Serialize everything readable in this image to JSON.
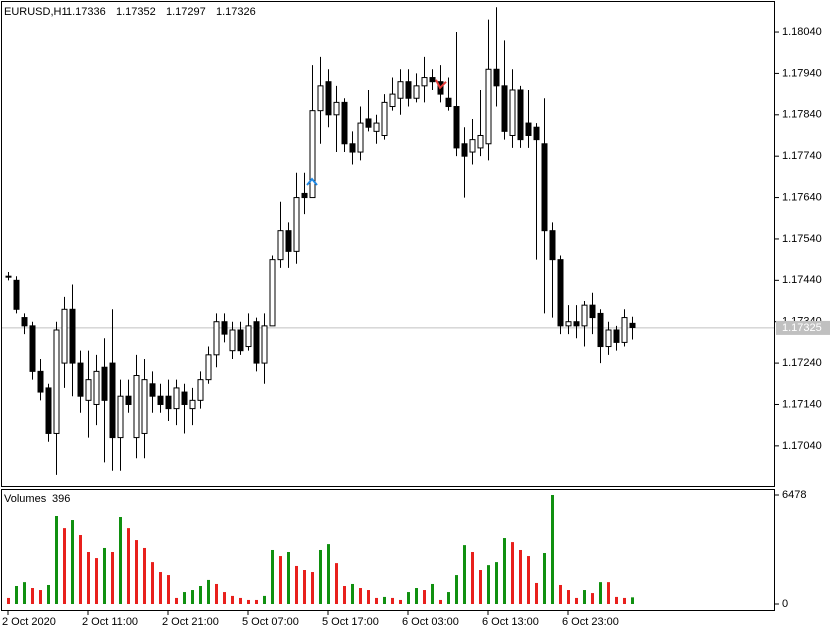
{
  "chart_data": [
    {
      "type": "candlestick",
      "symbol": "EURUSD,H1",
      "header_values": [
        1.17336,
        1.17352,
        1.17297,
        1.17326
      ],
      "categories": [
        "2 Oct 2020",
        null,
        null,
        null,
        null,
        null,
        null,
        null,
        null,
        null,
        "2 Oct 11:00",
        null,
        null,
        null,
        null,
        null,
        null,
        null,
        null,
        null,
        "2 Oct 21:00",
        null,
        null,
        null,
        null,
        null,
        null,
        null,
        null,
        null,
        "5 Oct 07:00",
        null,
        null,
        null,
        null,
        null,
        null,
        null,
        null,
        null,
        "5 Oct 17:00",
        null,
        null,
        null,
        null,
        null,
        null,
        null,
        null,
        null,
        "6 Oct 03:00",
        null,
        null,
        null,
        null,
        null,
        null,
        null,
        null,
        null,
        "6 Oct 13:00",
        null,
        null,
        null,
        null,
        null,
        null,
        null,
        null,
        null,
        "6 Oct 23:00",
        null,
        null,
        null,
        null,
        null,
        null,
        null,
        null
      ],
      "open": [
        1.1745,
        1.1744,
        1.1735,
        1.1733,
        1.1722,
        1.1718,
        1.1707,
        1.1724,
        1.1737,
        1.1724,
        1.1715,
        1.1714,
        1.1723,
        1.1724,
        1.1706,
        1.1716,
        1.1706,
        1.1707,
        1.1719,
        1.1716,
        1.1716,
        1.1713,
        1.1717,
        1.1713,
        1.1715,
        1.172,
        1.1726,
        1.1734,
        1.1727,
        1.1732,
        1.1728,
        1.1734,
        1.1724,
        1.1733,
        1.1749,
        1.1756,
        1.1751,
        1.1765,
        1.1764,
        1.1785,
        1.1792,
        1.1784,
        1.1787,
        1.1777,
        1.1775,
        1.1783,
        1.178,
        1.1779,
        1.1786,
        1.1788,
        1.1792,
        1.1788,
        1.1791,
        1.1793,
        1.1792,
        1.1788,
        1.1786,
        1.1777,
        1.1775,
        1.1776,
        1.1777,
        1.1795,
        1.1791,
        1.1779,
        1.179,
        1.1782,
        1.1781,
        1.1777,
        1.1756,
        1.1749,
        1.1733,
        1.1734,
        1.1733,
        1.1738,
        1.1736,
        1.1728,
        1.1732,
        1.1729,
        1.17336
      ],
      "high": [
        1.1746,
        1.1745,
        1.1736,
        1.1734,
        1.1725,
        1.1719,
        1.1734,
        1.174,
        1.1743,
        1.1727,
        1.1727,
        1.1726,
        1.173,
        1.1737,
        1.172,
        1.172,
        1.1726,
        1.1725,
        1.1722,
        1.1719,
        1.172,
        1.172,
        1.1719,
        1.1718,
        1.1722,
        1.1728,
        1.1736,
        1.1736,
        1.1734,
        1.1734,
        1.1736,
        1.1735,
        1.1736,
        1.175,
        1.1763,
        1.1758,
        1.177,
        1.177,
        1.1796,
        1.1798,
        1.1795,
        1.1791,
        1.1788,
        1.178,
        1.1786,
        1.179,
        1.1784,
        1.1789,
        1.1793,
        1.1795,
        1.1795,
        1.1794,
        1.1798,
        1.1795,
        1.1796,
        1.1793,
        1.1804,
        1.1781,
        1.1783,
        1.179,
        1.1807,
        1.181,
        1.1802,
        1.1795,
        1.1791,
        1.179,
        1.1782,
        1.1788,
        1.1758,
        1.175,
        1.1738,
        1.1738,
        1.1739,
        1.1741,
        1.1737,
        1.1734,
        1.1733,
        1.1737,
        1.17352
      ],
      "low": [
        1.1744,
        1.1736,
        1.1731,
        1.172,
        1.1715,
        1.1705,
        1.1697,
        1.1718,
        1.1716,
        1.1712,
        1.1706,
        1.1709,
        1.17,
        1.1698,
        1.1698,
        1.1712,
        1.1701,
        1.1701,
        1.1712,
        1.1712,
        1.171,
        1.1709,
        1.1707,
        1.1709,
        1.1713,
        1.1719,
        1.1723,
        1.1729,
        1.1725,
        1.1726,
        1.1727,
        1.1722,
        1.1719,
        1.1733,
        1.1747,
        1.1747,
        1.1748,
        1.176,
        1.1764,
        1.1777,
        1.1781,
        1.1775,
        1.1775,
        1.1772,
        1.1773,
        1.178,
        1.1777,
        1.1778,
        1.1785,
        1.1784,
        1.1786,
        1.1787,
        1.1787,
        1.179,
        1.1787,
        1.1785,
        1.1774,
        1.1764,
        1.1772,
        1.1774,
        1.1773,
        1.1786,
        1.1778,
        1.1776,
        1.1776,
        1.1776,
        1.1749,
        1.1736,
        1.1735,
        1.1731,
        1.1731,
        1.173,
        1.1728,
        1.1731,
        1.1724,
        1.1726,
        1.1727,
        1.1728,
        1.17297
      ],
      "close": [
        1.1745,
        1.1737,
        1.1733,
        1.1722,
        1.1717,
        1.1707,
        1.1732,
        1.1737,
        1.1724,
        1.1716,
        1.172,
        1.1722,
        1.1715,
        1.1706,
        1.1716,
        1.1714,
        1.1721,
        1.172,
        1.1716,
        1.1714,
        1.1713,
        1.1718,
        1.1714,
        1.1715,
        1.172,
        1.1726,
        1.1734,
        1.1731,
        1.1732,
        1.1727,
        1.1733,
        1.1724,
        1.1733,
        1.1749,
        1.1756,
        1.1751,
        1.1764,
        1.1764,
        1.1785,
        1.1791,
        1.1784,
        1.1787,
        1.1777,
        1.1775,
        1.1782,
        1.1781,
        1.1782,
        1.1787,
        1.1789,
        1.1792,
        1.1788,
        1.1791,
        1.1793,
        1.1792,
        1.1789,
        1.1786,
        1.1776,
        1.1774,
        1.1778,
        1.1779,
        1.1795,
        1.1791,
        1.178,
        1.179,
        1.1778,
        1.1779,
        1.1778,
        1.1756,
        1.1749,
        1.1733,
        1.1734,
        1.1733,
        1.1738,
        1.1735,
        1.1728,
        1.1732,
        1.1729,
        1.1735,
        1.17326
      ],
      "bid": 1.17325,
      "signals": [
        {
          "bar": 38,
          "price": 1.1768,
          "kind": "buy",
          "color": "#1e88e5"
        },
        {
          "bar": 54,
          "price": 1.1791,
          "kind": "sell",
          "color": "#e53935"
        }
      ],
      "ylim": [
        1.16943,
        1.18115
      ],
      "yticks": [
        {
          "value": 1.1804,
          "label": "1.18040"
        },
        {
          "value": 1.1794,
          "label": "1.17940"
        },
        {
          "value": 1.1784,
          "label": "1.17840"
        },
        {
          "value": 1.1774,
          "label": "1.17740"
        },
        {
          "value": 1.1764,
          "label": "1.17640"
        },
        {
          "value": 1.1754,
          "label": "1.17540"
        },
        {
          "value": 1.1744,
          "label": "1.17440"
        },
        {
          "value": 1.1734,
          "label": "1.17340"
        },
        {
          "value": 1.1724,
          "label": "1.17240"
        },
        {
          "value": 1.1714,
          "label": "1.17140"
        },
        {
          "value": 1.1704,
          "label": "1.17040"
        }
      ]
    },
    {
      "type": "bar",
      "title": "Volumes",
      "current": 396,
      "values": [
        360,
        1070,
        1300,
        950,
        830,
        1130,
        5230,
        4510,
        4990,
        4100,
        3090,
        2730,
        3330,
        3090,
        5170,
        4510,
        3800,
        3330,
        2490,
        1900,
        1720,
        360,
        710,
        830,
        1070,
        1430,
        1190,
        710,
        480,
        360,
        240,
        240,
        480,
        3210,
        2850,
        3090,
        2260,
        2020,
        1900,
        3210,
        3560,
        2430,
        1070,
        1190,
        950,
        830,
        360,
        420,
        360,
        240,
        710,
        950,
        830,
        1190,
        240,
        710,
        1720,
        3500,
        3090,
        2020,
        2310,
        2490,
        3920,
        3680,
        3210,
        2850,
        1250,
        3030,
        6478,
        1130,
        830,
        360,
        830,
        650,
        1300,
        1300,
        420,
        360,
        396
      ],
      "up_color": "#109010",
      "down_color": "#e8201c",
      "ylim": [
        0,
        6478
      ],
      "yticks": [
        6478,
        0
      ]
    }
  ]
}
